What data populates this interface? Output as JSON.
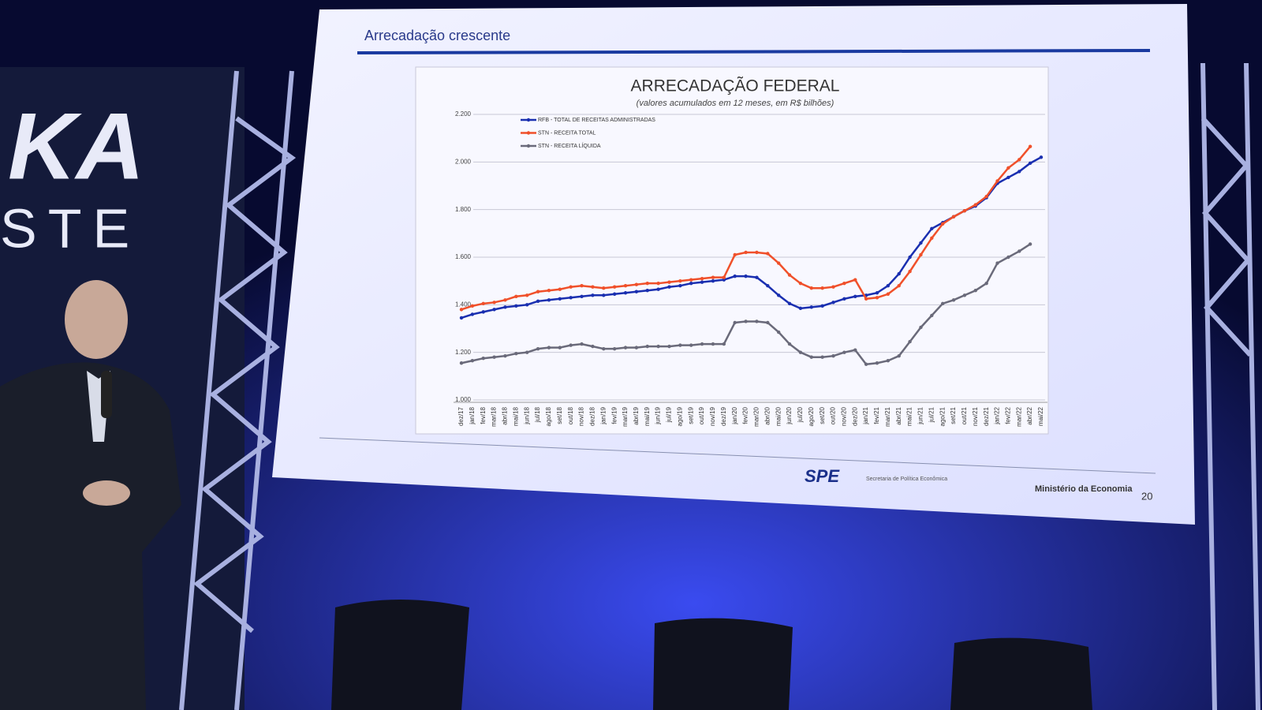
{
  "backdrop": {
    "logo": "KA",
    "tagline": "STE"
  },
  "slide": {
    "title": "Arrecadação crescente",
    "logo": "SPE",
    "agency": "Secretaria de Política Econômica",
    "ministry": "Ministério da Economia",
    "page": "20"
  },
  "chart_data": {
    "type": "line",
    "title": "ARRECADAÇÃO FEDERAL",
    "subtitle": "(valores acumulados em 12 meses, em R$ bilhões)",
    "categories": [
      "dez/17",
      "jan/18",
      "fev/18",
      "mar/18",
      "abr/18",
      "mai/18",
      "jun/18",
      "jul/18",
      "ago/18",
      "set/18",
      "out/18",
      "nov/18",
      "dez/18",
      "jan/19",
      "fev/19",
      "mar/19",
      "abr/19",
      "mai/19",
      "jun/19",
      "jul/19",
      "ago/19",
      "set/19",
      "out/19",
      "nov/19",
      "dez/19",
      "jan/20",
      "fev/20",
      "mar/20",
      "abr/20",
      "mai/20",
      "jun/20",
      "jul/20",
      "ago/20",
      "set/20",
      "out/20",
      "nov/20",
      "dez/20",
      "jan/21",
      "fev/21",
      "mar/21",
      "abr/21",
      "mai/21",
      "jun/21",
      "jul/21",
      "ago/21",
      "set/21",
      "out/21",
      "nov/21",
      "dez/21",
      "jan/22",
      "fev/22",
      "mar/22",
      "abr/22",
      "mai/22"
    ],
    "series": [
      {
        "name": "RFB - TOTAL DE RECEITAS ADMINISTRADAS",
        "color": "#1a2fb0",
        "values": [
          1345,
          1360,
          1370,
          1380,
          1390,
          1395,
          1400,
          1415,
          1420,
          1425,
          1430,
          1435,
          1440,
          1440,
          1445,
          1450,
          1455,
          1460,
          1465,
          1475,
          1480,
          1490,
          1495,
          1500,
          1505,
          1520,
          1520,
          1515,
          1480,
          1440,
          1405,
          1385,
          1390,
          1395,
          1410,
          1425,
          1435,
          1440,
          1450,
          1480,
          1530,
          1600,
          1660,
          1720,
          1745,
          1770,
          1795,
          1815,
          1850,
          1910,
          1935,
          1960,
          1995,
          2020
        ]
      },
      {
        "name": "STN - RECEITA TOTAL",
        "color": "#f0502a",
        "values": [
          1380,
          1395,
          1405,
          1410,
          1420,
          1435,
          1440,
          1455,
          1460,
          1465,
          1475,
          1480,
          1475,
          1470,
          1475,
          1480,
          1485,
          1490,
          1490,
          1495,
          1500,
          1505,
          1510,
          1515,
          1515,
          1610,
          1620,
          1620,
          1615,
          1575,
          1525,
          1490,
          1470,
          1470,
          1475,
          1490,
          1505,
          1425,
          1430,
          1445,
          1480,
          1540,
          1610,
          1680,
          1740,
          1770,
          1795,
          1820,
          1855,
          1920,
          1975,
          2010,
          2065,
          null
        ]
      },
      {
        "name": "STN - RECEITA LÍQUIDA",
        "color": "#6a6a7a",
        "values": [
          1155,
          1165,
          1175,
          1180,
          1185,
          1195,
          1200,
          1215,
          1220,
          1220,
          1230,
          1235,
          1225,
          1215,
          1215,
          1220,
          1220,
          1225,
          1225,
          1225,
          1230,
          1230,
          1235,
          1235,
          1235,
          1325,
          1330,
          1330,
          1325,
          1285,
          1235,
          1200,
          1180,
          1180,
          1185,
          1200,
          1210,
          1150,
          1155,
          1165,
          1185,
          1245,
          1305,
          1355,
          1405,
          1420,
          1440,
          1460,
          1490,
          1575,
          1600,
          1625,
          1655,
          null
        ]
      }
    ],
    "ylim": [
      1000,
      2200
    ],
    "yticks": [
      {
        "value": 1000,
        "label": "1.000"
      },
      {
        "value": 1200,
        "label": "1.200"
      },
      {
        "value": 1400,
        "label": "1.400"
      },
      {
        "value": 1600,
        "label": "1.600"
      },
      {
        "value": 1800,
        "label": "1.800"
      },
      {
        "value": 2000,
        "label": "2.000"
      },
      {
        "value": 2200,
        "label": "2.200"
      }
    ],
    "grid": true
  }
}
